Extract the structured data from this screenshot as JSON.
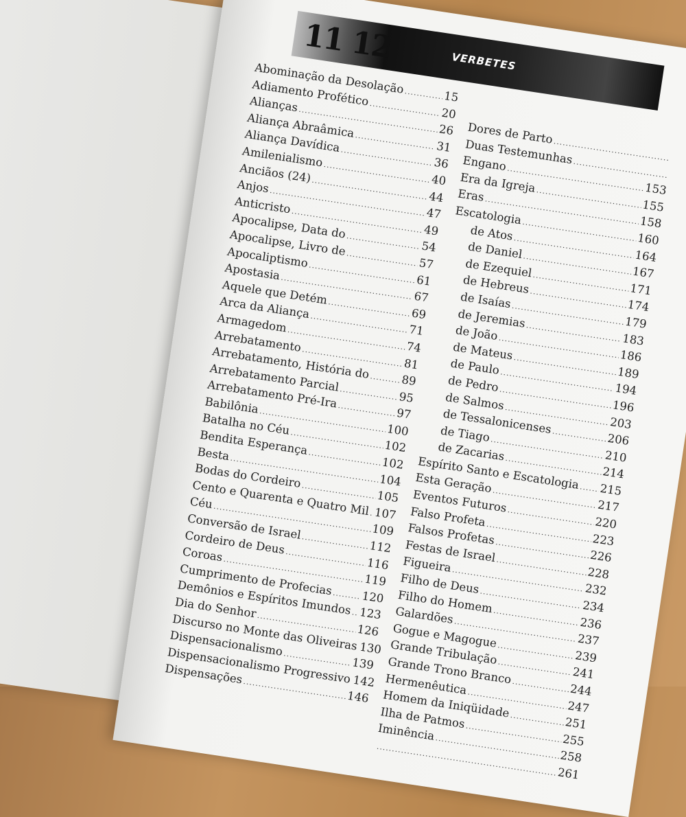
{
  "header": {
    "clock_numbers": "11 12",
    "title": "VERBETES"
  },
  "left_column": [
    {
      "name": "Abominação da Desolação",
      "page": "15"
    },
    {
      "name": "Adiamento Profético",
      "page": "20"
    },
    {
      "name": "Alianças",
      "page": "26"
    },
    {
      "name": "Aliança Abraâmica",
      "page": "31"
    },
    {
      "name": "Aliança Davídica",
      "page": "36"
    },
    {
      "name": "Amilenialismo",
      "page": "40"
    },
    {
      "name": "Anciãos (24)",
      "page": "44"
    },
    {
      "name": "Anjos",
      "page": "47"
    },
    {
      "name": "Anticristo",
      "page": "49"
    },
    {
      "name": "Apocalipse, Data do",
      "page": "54"
    },
    {
      "name": "Apocalipse, Livro de",
      "page": "57"
    },
    {
      "name": "Apocaliptismo",
      "page": "61"
    },
    {
      "name": "Apostasia",
      "page": "67"
    },
    {
      "name": "Aquele que Detém",
      "page": "69"
    },
    {
      "name": "Arca da Aliança",
      "page": "71"
    },
    {
      "name": "Armagedom",
      "page": "74"
    },
    {
      "name": "Arrebatamento",
      "page": "81"
    },
    {
      "name": "Arrebatamento, História do",
      "page": "89"
    },
    {
      "name": "Arrebatamento Parcial",
      "page": "95"
    },
    {
      "name": "Arrebatamento Pré-Ira",
      "page": "97"
    },
    {
      "name": "Babilônia",
      "page": "100"
    },
    {
      "name": "Batalha no Céu",
      "page": "102"
    },
    {
      "name": "Bendita Esperança",
      "page": "102"
    },
    {
      "name": "Besta",
      "page": "104"
    },
    {
      "name": "Bodas do Cordeiro",
      "page": "105"
    },
    {
      "name": "Cento e Quarenta e Quatro Mil",
      "page": "107"
    },
    {
      "name": "Céu",
      "page": "109"
    },
    {
      "name": "Conversão de Israel",
      "page": "112"
    },
    {
      "name": "Cordeiro de Deus",
      "page": "116"
    },
    {
      "name": "Coroas",
      "page": "119"
    },
    {
      "name": "Cumprimento de Profecias",
      "page": "120"
    },
    {
      "name": "Demônios e Espíritos Imundos",
      "page": "123"
    },
    {
      "name": "Dia do Senhor",
      "page": "126"
    },
    {
      "name": "Discurso no Monte das Oliveiras",
      "page": "130"
    },
    {
      "name": "Dispensacionalismo",
      "page": "139"
    },
    {
      "name": "Dispensacionalismo Progressivo",
      "page": "142"
    },
    {
      "name": "Dispensações",
      "page": "146"
    }
  ],
  "right_column": [
    {
      "name": "Dores de Parto",
      "page": ""
    },
    {
      "name": "Duas Testemunhas",
      "page": ""
    },
    {
      "name": "Engano",
      "page": "153"
    },
    {
      "name": "Era da Igreja",
      "page": "155"
    },
    {
      "name": "Eras",
      "page": "158"
    },
    {
      "name": "Escatologia",
      "page": "160"
    },
    {
      "name": "de Atos",
      "page": "164",
      "sub": true
    },
    {
      "name": "de Daniel",
      "page": "167",
      "sub": true
    },
    {
      "name": "de Ezequiel",
      "page": "171",
      "sub": true
    },
    {
      "name": "de Hebreus",
      "page": "174",
      "sub": true
    },
    {
      "name": "de Isaías",
      "page": "179",
      "sub": true
    },
    {
      "name": "de Jeremias",
      "page": "183",
      "sub": true
    },
    {
      "name": "de João",
      "page": "186",
      "sub": true
    },
    {
      "name": "de Mateus",
      "page": "189",
      "sub": true
    },
    {
      "name": "de Paulo",
      "page": "194",
      "sub": true
    },
    {
      "name": "de Pedro",
      "page": "196",
      "sub": true
    },
    {
      "name": "de Salmos",
      "page": "203",
      "sub": true
    },
    {
      "name": "de Tessalonicenses",
      "page": "206",
      "sub": true
    },
    {
      "name": "de Tiago",
      "page": "210",
      "sub": true
    },
    {
      "name": "de Zacarias",
      "page": "214",
      "sub": true
    },
    {
      "name": "Espírito Santo e Escatologia",
      "page": "215"
    },
    {
      "name": "Esta Geração",
      "page": "217"
    },
    {
      "name": "Eventos Futuros",
      "page": "220"
    },
    {
      "name": "Falso Profeta",
      "page": "223"
    },
    {
      "name": "Falsos Profetas",
      "page": "226"
    },
    {
      "name": "Festas de Israel",
      "page": "228"
    },
    {
      "name": "Figueira",
      "page": "232"
    },
    {
      "name": "Filho de Deus",
      "page": "234"
    },
    {
      "name": "Filho do Homem",
      "page": "236"
    },
    {
      "name": "Galardões",
      "page": "237"
    },
    {
      "name": "Gogue e Magogue",
      "page": "239"
    },
    {
      "name": "Grande Tribulação",
      "page": "241"
    },
    {
      "name": "Grande Trono Branco",
      "page": "244"
    },
    {
      "name": "Hermenêutica",
      "page": "247"
    },
    {
      "name": "Homem da Iniqüidade",
      "page": "251"
    },
    {
      "name": "Ilha de Patmos",
      "page": "255"
    },
    {
      "name": "Iminência",
      "page": "258"
    },
    {
      "name": "",
      "page": "261"
    }
  ]
}
